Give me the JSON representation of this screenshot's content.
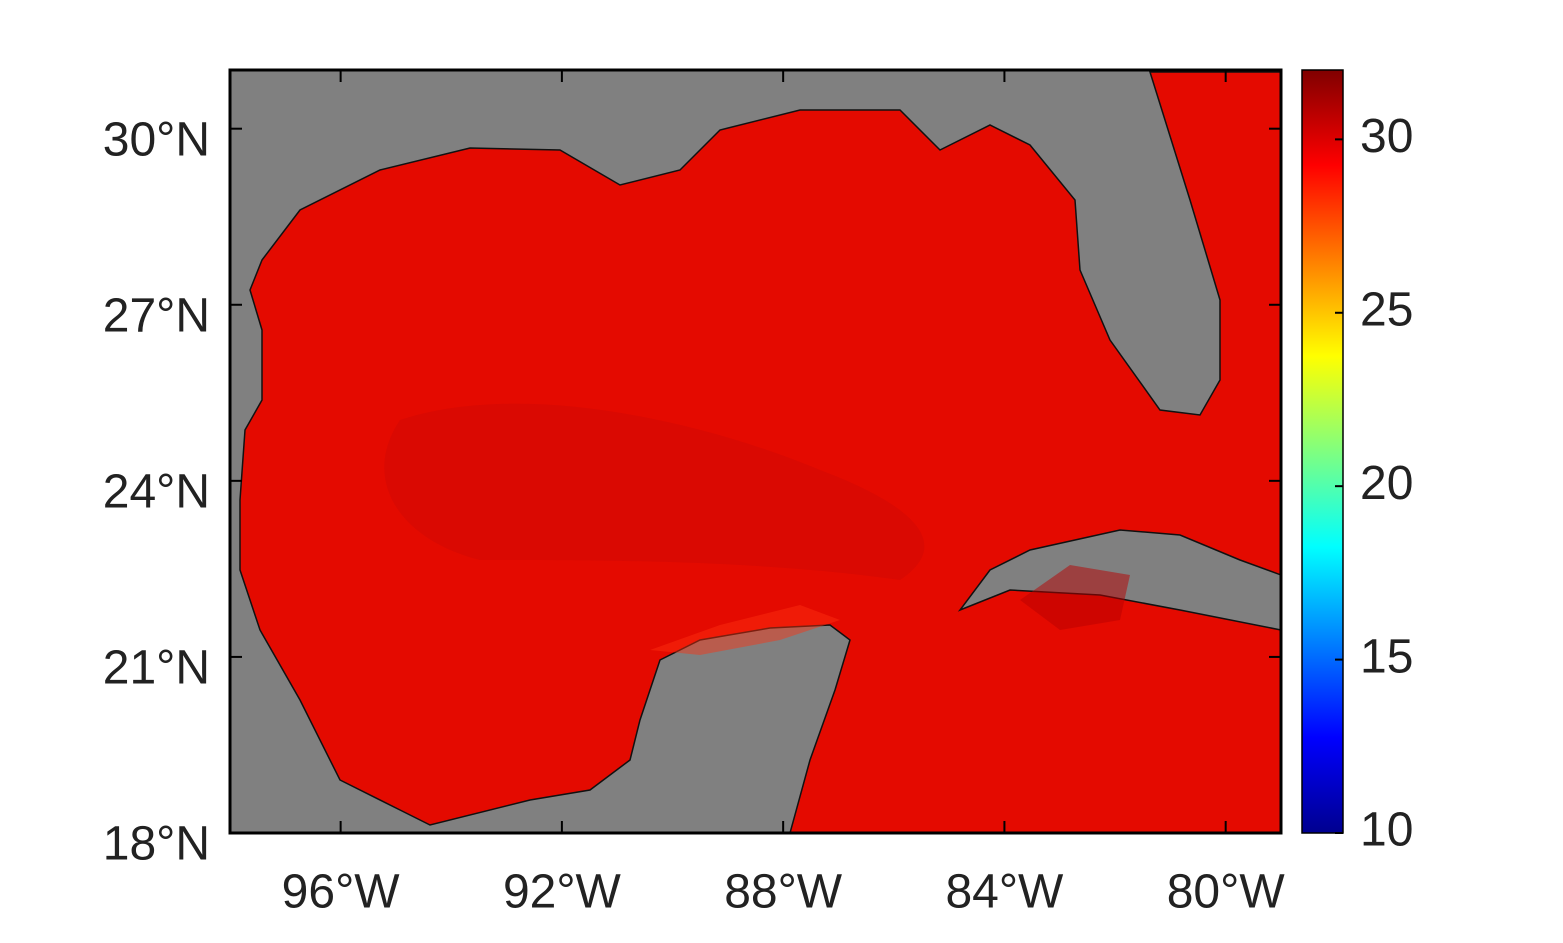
{
  "chart_data": {
    "type": "map",
    "xlim": [
      -98,
      -79
    ],
    "ylim": [
      18,
      31
    ],
    "xticks": [
      {
        "value": -96,
        "label": "96°W"
      },
      {
        "value": -92,
        "label": "92°W"
      },
      {
        "value": -88,
        "label": "88°W"
      },
      {
        "value": -84,
        "label": "84°W"
      },
      {
        "value": -80,
        "label": "80°W"
      }
    ],
    "yticks": [
      {
        "value": 18,
        "label": "18°N"
      },
      {
        "value": 21,
        "label": "21°N"
      },
      {
        "value": 24,
        "label": "24°N"
      },
      {
        "value": 27,
        "label": "27°N"
      },
      {
        "value": 30,
        "label": "30°N"
      }
    ],
    "clim": [
      10,
      32
    ],
    "cticks": [
      10,
      15,
      20,
      25,
      30
    ],
    "colormap": "jet"
  }
}
